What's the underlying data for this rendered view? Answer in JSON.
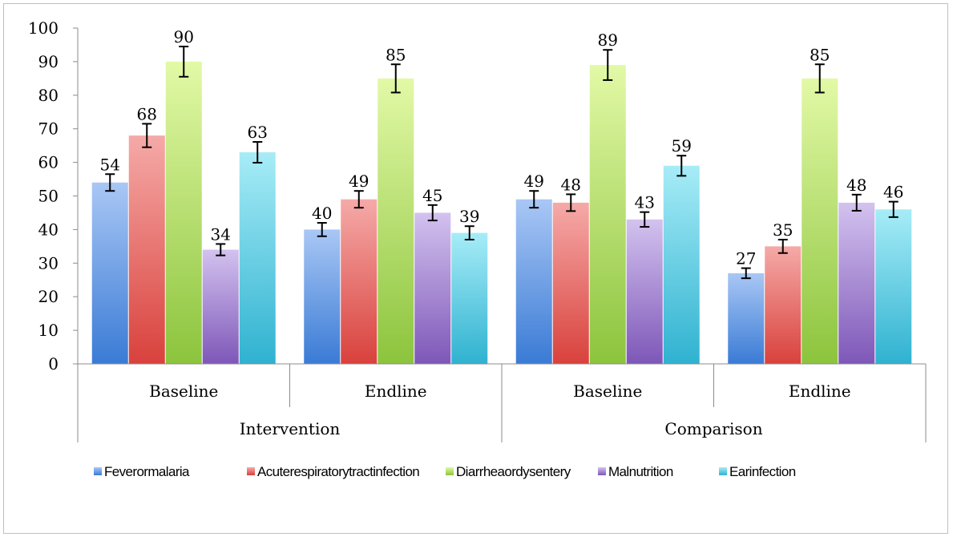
{
  "chart_data": {
    "type": "bar",
    "groups": [
      {
        "label": "Intervention",
        "categories": [
          "Baseline",
          "Endline"
        ]
      },
      {
        "label": "Comparison",
        "categories": [
          "Baseline",
          "Endline"
        ]
      }
    ],
    "categories": [
      "Baseline",
      "Endline",
      "Baseline",
      "Endline"
    ],
    "series": [
      {
        "name": "Feverormalaria",
        "values": [
          54,
          40,
          49,
          27
        ],
        "error": [
          2.5,
          2,
          2.5,
          1.5
        ],
        "color_top": "#a9c7f5",
        "color_bottom": "#3a7bd5"
      },
      {
        "name": "Acuterespiratorytractinfection",
        "values": [
          68,
          49,
          48,
          35
        ],
        "error": [
          3.5,
          2.5,
          2.5,
          2
        ],
        "color_top": "#f5aaa8",
        "color_bottom": "#d9413c"
      },
      {
        "name": "Diarrheaordysentery",
        "values": [
          90,
          85,
          89,
          85
        ],
        "error": [
          4.5,
          4.2,
          4.5,
          4.2
        ],
        "color_top": "#e2f9a6",
        "color_bottom": "#8cc43d"
      },
      {
        "name": "Malnutrition",
        "values": [
          34,
          45,
          43,
          48
        ],
        "error": [
          1.7,
          2.3,
          2.2,
          2.4
        ],
        "color_top": "#d3c2ef",
        "color_bottom": "#7e57b8"
      },
      {
        "name": "Earinfection",
        "values": [
          63,
          39,
          59,
          46
        ],
        "error": [
          3.1,
          2,
          3,
          2.3
        ],
        "color_top": "#a7ecf7",
        "color_bottom": "#2fb2d0"
      }
    ],
    "ylim": [
      0,
      100
    ],
    "yticks": [
      0,
      10,
      20,
      30,
      40,
      50,
      60,
      70,
      80,
      90,
      100
    ],
    "grid": false,
    "legend_position": "bottom"
  }
}
